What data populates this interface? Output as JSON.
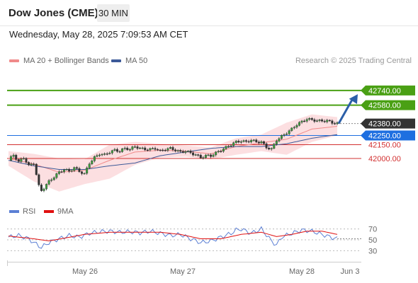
{
  "header": {
    "title": "Dow Jones (CME)",
    "timeframe": "30 MIN"
  },
  "timestamp": "Wednesday, May 28, 2025 7:09:53 AM CET",
  "legend": [
    {
      "label": "MA 20 + Bollinger Bands",
      "color": "#f08a8a"
    },
    {
      "label": "MA 50",
      "color": "#3d5a99"
    }
  ],
  "copyright": "Research © 2025 Trading Central",
  "colors": {
    "target": "#4aa014",
    "pivot": "#1e6fe0",
    "support": "#d23030",
    "last": "#333333",
    "arrow": "#2b5fa8",
    "ma20": "#f08a8a",
    "ma50": "#3d5a99",
    "band": "#fbd9dc",
    "rsi": "#5b7fd4",
    "rsi_ma": "#e01010"
  },
  "chart_data": [
    {
      "type": "candlestick",
      "y_range": [
        41530,
        42970
      ],
      "x_labels": [
        "May 26",
        "May 27",
        "May 28",
        "Jun 3"
      ],
      "close_path": [
        [
          0,
          41980
        ],
        [
          2,
          42040
        ],
        [
          4,
          41960
        ],
        [
          6,
          42010
        ],
        [
          8,
          41920
        ],
        [
          10,
          41950
        ],
        [
          12,
          41700
        ],
        [
          13,
          41650
        ],
        [
          14,
          41680
        ],
        [
          16,
          41750
        ],
        [
          18,
          41800
        ],
        [
          20,
          41850
        ],
        [
          22,
          41880
        ],
        [
          24,
          41860
        ],
        [
          26,
          41900
        ],
        [
          28,
          41860
        ],
        [
          30,
          41830
        ],
        [
          32,
          41950
        ],
        [
          34,
          42010
        ],
        [
          36,
          42050
        ],
        [
          38,
          42040
        ],
        [
          40,
          42070
        ],
        [
          42,
          42090
        ],
        [
          44,
          42080
        ],
        [
          46,
          42110
        ],
        [
          48,
          42100
        ],
        [
          50,
          42130
        ],
        [
          52,
          42110
        ],
        [
          54,
          42100
        ],
        [
          56,
          42100
        ],
        [
          58,
          42110
        ],
        [
          60,
          42080
        ],
        [
          62,
          42100
        ],
        [
          64,
          42110
        ],
        [
          66,
          42090
        ],
        [
          68,
          42070
        ],
        [
          70,
          42080
        ],
        [
          72,
          42060
        ],
        [
          74,
          42040
        ],
        [
          76,
          42010
        ],
        [
          78,
          42030
        ],
        [
          80,
          42030
        ],
        [
          82,
          42060
        ],
        [
          84,
          42090
        ],
        [
          86,
          42120
        ],
        [
          88,
          42150
        ],
        [
          90,
          42180
        ],
        [
          92,
          42190
        ],
        [
          94,
          42180
        ],
        [
          96,
          42200
        ],
        [
          98,
          42180
        ],
        [
          100,
          42180
        ],
        [
          102,
          42120
        ],
        [
          104,
          42100
        ],
        [
          106,
          42200
        ],
        [
          108,
          42240
        ],
        [
          110,
          42280
        ],
        [
          112,
          42320
        ],
        [
          114,
          42370
        ],
        [
          116,
          42400
        ],
        [
          118,
          42430
        ],
        [
          120,
          42420
        ],
        [
          122,
          42410
        ],
        [
          124,
          42410
        ],
        [
          126,
          42410
        ],
        [
          128,
          42390
        ],
        [
          130,
          42380
        ]
      ],
      "ma20": [
        [
          0,
          42000
        ],
        [
          10,
          41940
        ],
        [
          20,
          41850
        ],
        [
          30,
          41870
        ],
        [
          40,
          41980
        ],
        [
          50,
          42070
        ],
        [
          60,
          42090
        ],
        [
          70,
          42080
        ],
        [
          80,
          42050
        ],
        [
          90,
          42130
        ],
        [
          100,
          42170
        ],
        [
          110,
          42210
        ],
        [
          120,
          42320
        ],
        [
          130,
          42350
        ]
      ],
      "ma50": [
        [
          0,
          41980
        ],
        [
          10,
          41920
        ],
        [
          20,
          41880
        ],
        [
          30,
          41880
        ],
        [
          40,
          41920
        ],
        [
          50,
          41950
        ],
        [
          60,
          42030
        ],
        [
          70,
          42070
        ],
        [
          80,
          42110
        ],
        [
          90,
          42130
        ],
        [
          100,
          42130
        ],
        [
          110,
          42160
        ],
        [
          120,
          42220
        ],
        [
          130,
          42260
        ]
      ],
      "bb_upper": [
        [
          0,
          42080
        ],
        [
          10,
          42050
        ],
        [
          20,
          42000
        ],
        [
          30,
          41990
        ],
        [
          40,
          42150
        ],
        [
          50,
          42180
        ],
        [
          60,
          42160
        ],
        [
          70,
          42140
        ],
        [
          80,
          42120
        ],
        [
          90,
          42220
        ],
        [
          100,
          42260
        ],
        [
          110,
          42390
        ],
        [
          120,
          42480
        ],
        [
          130,
          42450
        ]
      ],
      "bb_lower": [
        [
          0,
          41920
        ],
        [
          10,
          41750
        ],
        [
          20,
          41640
        ],
        [
          30,
          41720
        ],
        [
          40,
          41780
        ],
        [
          50,
          41930
        ],
        [
          60,
          42010
        ],
        [
          70,
          42020
        ],
        [
          80,
          41990
        ],
        [
          90,
          42040
        ],
        [
          100,
          42080
        ],
        [
          110,
          42040
        ],
        [
          120,
          42180
        ],
        [
          130,
          42250
        ]
      ],
      "levels": [
        {
          "value": 42740,
          "label": "42740.00",
          "kind": "target"
        },
        {
          "value": 42580,
          "label": "42580.00",
          "kind": "target"
        },
        {
          "value": 42380,
          "label": "42380.00",
          "kind": "last"
        },
        {
          "value": 42250,
          "label": "42250.00",
          "kind": "pivot"
        },
        {
          "value": 42150,
          "label": "42150.00",
          "kind": "support"
        },
        {
          "value": 42000,
          "label": "42000.00",
          "kind": "support"
        }
      ],
      "arrow_to": 42700
    },
    {
      "type": "line",
      "legend": [
        "RSI",
        "9MA"
      ],
      "y_ticks": [
        70,
        50,
        30
      ],
      "y_range": [
        20,
        80
      ],
      "rsi": [
        [
          0,
          55
        ],
        [
          4,
          58
        ],
        [
          8,
          52
        ],
        [
          10,
          45
        ],
        [
          13,
          36
        ],
        [
          16,
          45
        ],
        [
          20,
          52
        ],
        [
          24,
          58
        ],
        [
          28,
          55
        ],
        [
          32,
          62
        ],
        [
          36,
          65
        ],
        [
          40,
          66
        ],
        [
          44,
          64
        ],
        [
          48,
          65
        ],
        [
          52,
          63
        ],
        [
          56,
          66
        ],
        [
          60,
          62
        ],
        [
          64,
          58
        ],
        [
          68,
          60
        ],
        [
          72,
          52
        ],
        [
          76,
          45
        ],
        [
          80,
          48
        ],
        [
          84,
          55
        ],
        [
          88,
          62
        ],
        [
          90,
          68
        ],
        [
          92,
          70
        ],
        [
          96,
          62
        ],
        [
          100,
          70
        ],
        [
          104,
          48
        ],
        [
          106,
          40
        ],
        [
          108,
          55
        ],
        [
          112,
          62
        ],
        [
          116,
          68
        ],
        [
          120,
          66
        ],
        [
          124,
          60
        ],
        [
          128,
          54
        ],
        [
          130,
          52
        ]
      ],
      "rsi_ma": [
        [
          0,
          57
        ],
        [
          10,
          52
        ],
        [
          16,
          48
        ],
        [
          22,
          53
        ],
        [
          30,
          60
        ],
        [
          40,
          64
        ],
        [
          50,
          64
        ],
        [
          60,
          64
        ],
        [
          68,
          60
        ],
        [
          76,
          52
        ],
        [
          84,
          52
        ],
        [
          92,
          60
        ],
        [
          100,
          64
        ],
        [
          106,
          56
        ],
        [
          112,
          60
        ],
        [
          118,
          66
        ],
        [
          124,
          66
        ],
        [
          130,
          60
        ]
      ]
    }
  ]
}
